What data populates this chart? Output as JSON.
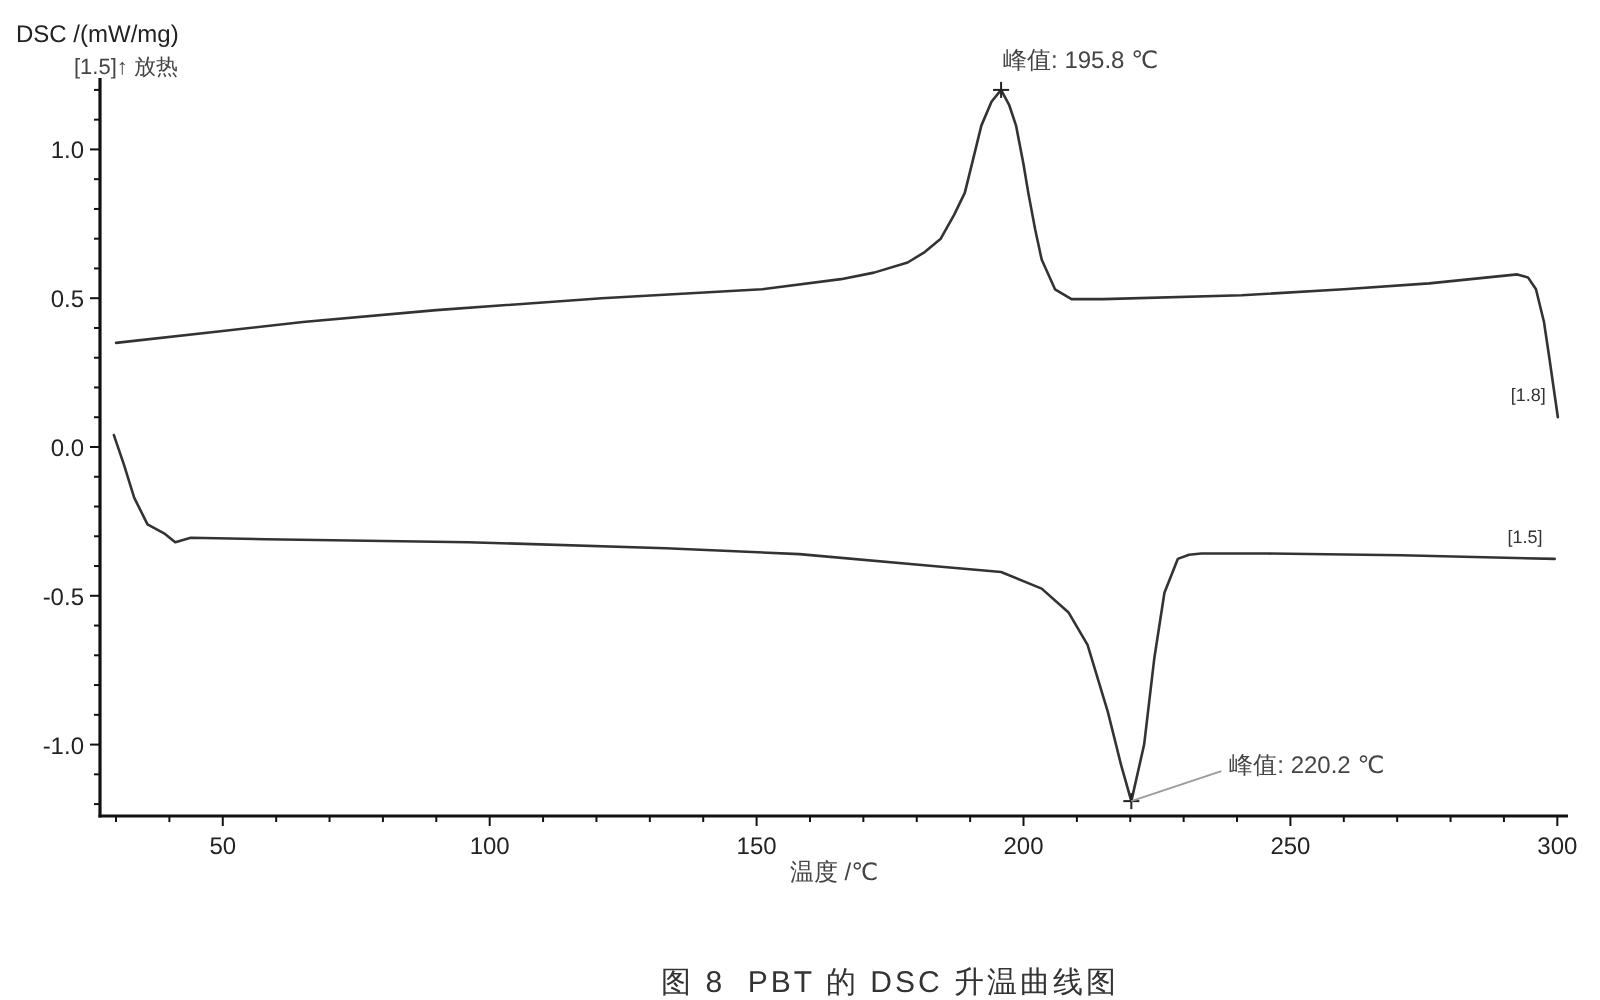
{
  "chart_data": {
    "type": "line",
    "title": "图 8  PBT 的 DSC 升温曲线图",
    "xlabel": "温度 /℃",
    "ylabel": "DSC /(mW/mg)",
    "annotations": [
      "[1.5]↑ 放热",
      {
        "text": "峰值: 195.8 ℃",
        "x": 195.8,
        "y": 1.2
      },
      {
        "text": "峰值: 220.2 ℃",
        "x": 220.2,
        "y": -1.19
      }
    ],
    "xlim": [
      27,
      302
    ],
    "ylim": [
      -1.24,
      1.24
    ],
    "xticks": [
      {
        "value": 30,
        "label": null
      },
      {
        "value": 40,
        "label": null
      },
      50,
      {
        "value": 60,
        "label": null
      },
      {
        "value": 70,
        "label": null
      },
      {
        "value": 80,
        "label": null
      },
      {
        "value": 90,
        "label": null
      },
      100,
      {
        "value": 110,
        "label": null
      },
      {
        "value": 120,
        "label": null
      },
      {
        "value": 130,
        "label": null
      },
      {
        "value": 140,
        "label": null
      },
      150,
      {
        "value": 160,
        "label": null
      },
      {
        "value": 170,
        "label": null
      },
      {
        "value": 180,
        "label": null
      },
      {
        "value": 190,
        "label": null
      },
      200,
      {
        "value": 210,
        "label": null
      },
      {
        "value": 220,
        "label": null
      },
      {
        "value": 230,
        "label": null
      },
      {
        "value": 240,
        "label": null
      },
      250,
      {
        "value": 260,
        "label": null
      },
      {
        "value": 270,
        "label": null
      },
      {
        "value": 280,
        "label": null
      },
      {
        "value": 290,
        "label": null
      },
      300
    ],
    "yticks": [
      {
        "value": -1.2,
        "label": null
      },
      {
        "value": -1.1,
        "label": null
      },
      {
        "value": -1,
        "label": "-1.0"
      },
      {
        "value": -0.9,
        "label": null
      },
      {
        "value": -0.8,
        "label": null
      },
      {
        "value": -0.7,
        "label": null
      },
      {
        "value": -0.6,
        "label": null
      },
      -0.5,
      {
        "value": -0.4,
        "label": null
      },
      {
        "value": -0.3,
        "label": null
      },
      {
        "value": -0.2,
        "label": null
      },
      {
        "value": -0.1,
        "label": null
      },
      {
        "value": 0,
        "label": "0.0"
      },
      {
        "value": 0.1,
        "label": null
      },
      {
        "value": 0.2,
        "label": null
      },
      {
        "value": 0.3,
        "label": null
      },
      {
        "value": 0.4,
        "label": null
      },
      0.5,
      {
        "value": 0.6,
        "label": null
      },
      {
        "value": 0.7,
        "label": null
      },
      {
        "value": 0.8,
        "label": null
      },
      {
        "value": 0.9,
        "label": null
      },
      {
        "value": 1,
        "label": "1.0"
      },
      {
        "value": 1.1,
        "label": null
      },
      {
        "value": 1.2,
        "label": null
      }
    ],
    "series": [
      {
        "name": "[1.8]",
        "color": "#333333",
        "x": [
          30,
          50,
          65,
          90,
          121,
          151,
          165.8,
          172,
          178.3,
          181.5,
          184.5,
          187,
          189,
          190.6,
          192.1,
          194,
          195.8,
          197.3,
          198.6,
          200,
          200.9,
          202.2,
          203.4,
          205.9,
          209,
          215,
          240.9,
          260,
          276,
          292.5,
          294.5,
          296,
          297.5,
          298.5,
          299.3,
          300.1
        ],
        "values": [
          0.35,
          0.39,
          0.42,
          0.46,
          0.5,
          0.53,
          0.564,
          0.586,
          0.62,
          0.655,
          0.7,
          0.78,
          0.854,
          0.97,
          1.08,
          1.16,
          1.2,
          1.15,
          1.08,
          0.95,
          0.854,
          0.73,
          0.63,
          0.53,
          0.497,
          0.497,
          0.51,
          0.53,
          0.55,
          0.58,
          0.57,
          0.53,
          0.42,
          0.3,
          0.2,
          0.1
        ]
      },
      {
        "name": "[1.5]",
        "color": "#333333",
        "x": [
          29.6,
          31.5,
          33.4,
          35.9,
          39,
          41.1,
          44,
          58,
          96,
          133,
          158,
          183,
          195.8,
          203.4,
          208.4,
          212,
          215.8,
          218.3,
          220.2,
          222.6,
          224.5,
          226.4,
          228.9,
          231,
          233.3,
          245.8,
          270.8,
          299.5
        ],
        "values": [
          0.04,
          -0.06,
          -0.17,
          -0.26,
          -0.29,
          -0.32,
          -0.305,
          -0.31,
          -0.32,
          -0.34,
          -0.36,
          -0.4,
          -0.42,
          -0.476,
          -0.555,
          -0.665,
          -0.89,
          -1.07,
          -1.19,
          -1,
          -0.71,
          -0.49,
          -0.376,
          -0.362,
          -0.358,
          -0.358,
          -0.364,
          -0.376
        ]
      }
    ]
  }
}
